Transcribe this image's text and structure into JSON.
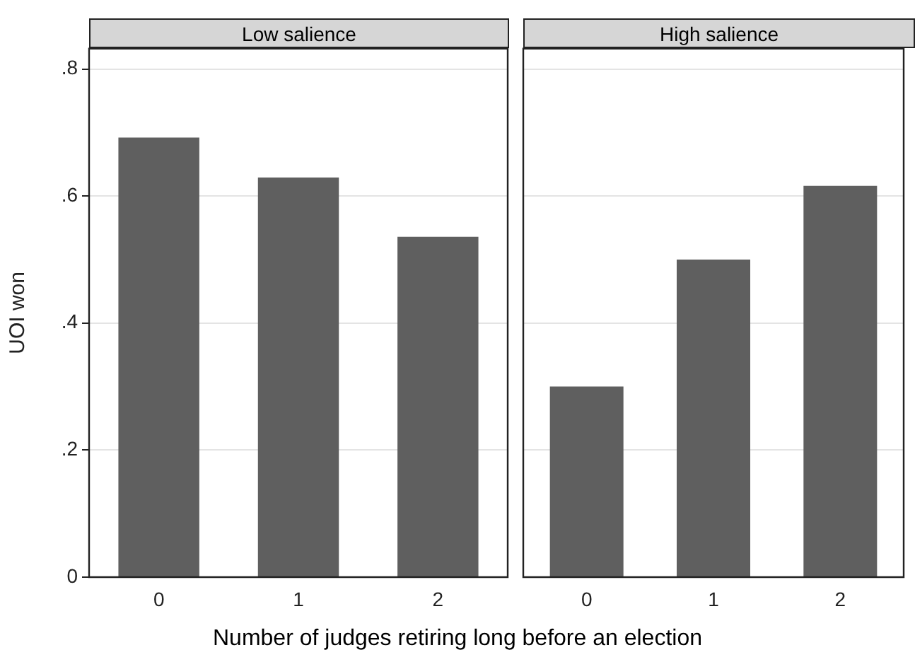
{
  "chart_data": [
    {
      "type": "bar",
      "title": "Low salience",
      "xlabel": "Number of judges retiring long before an election",
      "ylabel": "UOI won",
      "categories": [
        "0",
        "1",
        "2"
      ],
      "values": [
        0.692,
        0.629,
        0.536
      ],
      "color": "#5f5f5f",
      "ylim": [
        0,
        0.832
      ],
      "yticks": [
        0,
        {
          "value": 0.2,
          "label": ".2"
        },
        {
          "value": 0.4,
          "label": ".4"
        },
        {
          "value": 0.6,
          "label": ".6"
        },
        {
          "value": 0.8,
          "label": ".8"
        }
      ],
      "grid": "y"
    },
    {
      "type": "bar",
      "title": "High salience",
      "categories": [
        "0",
        "1",
        "2"
      ],
      "values": [
        0.3,
        0.5,
        0.616
      ],
      "color": "#5f5f5f",
      "ylim": [
        0,
        0.832
      ],
      "yticks": [
        {
          "value": 0,
          "label": null
        },
        {
          "value": 0.2,
          "label": null
        },
        {
          "value": 0.4,
          "label": null
        },
        {
          "value": 0.6,
          "label": null
        },
        {
          "value": 0.8,
          "label": null
        }
      ],
      "grid": "y",
      "tick_labels": "x"
    }
  ]
}
